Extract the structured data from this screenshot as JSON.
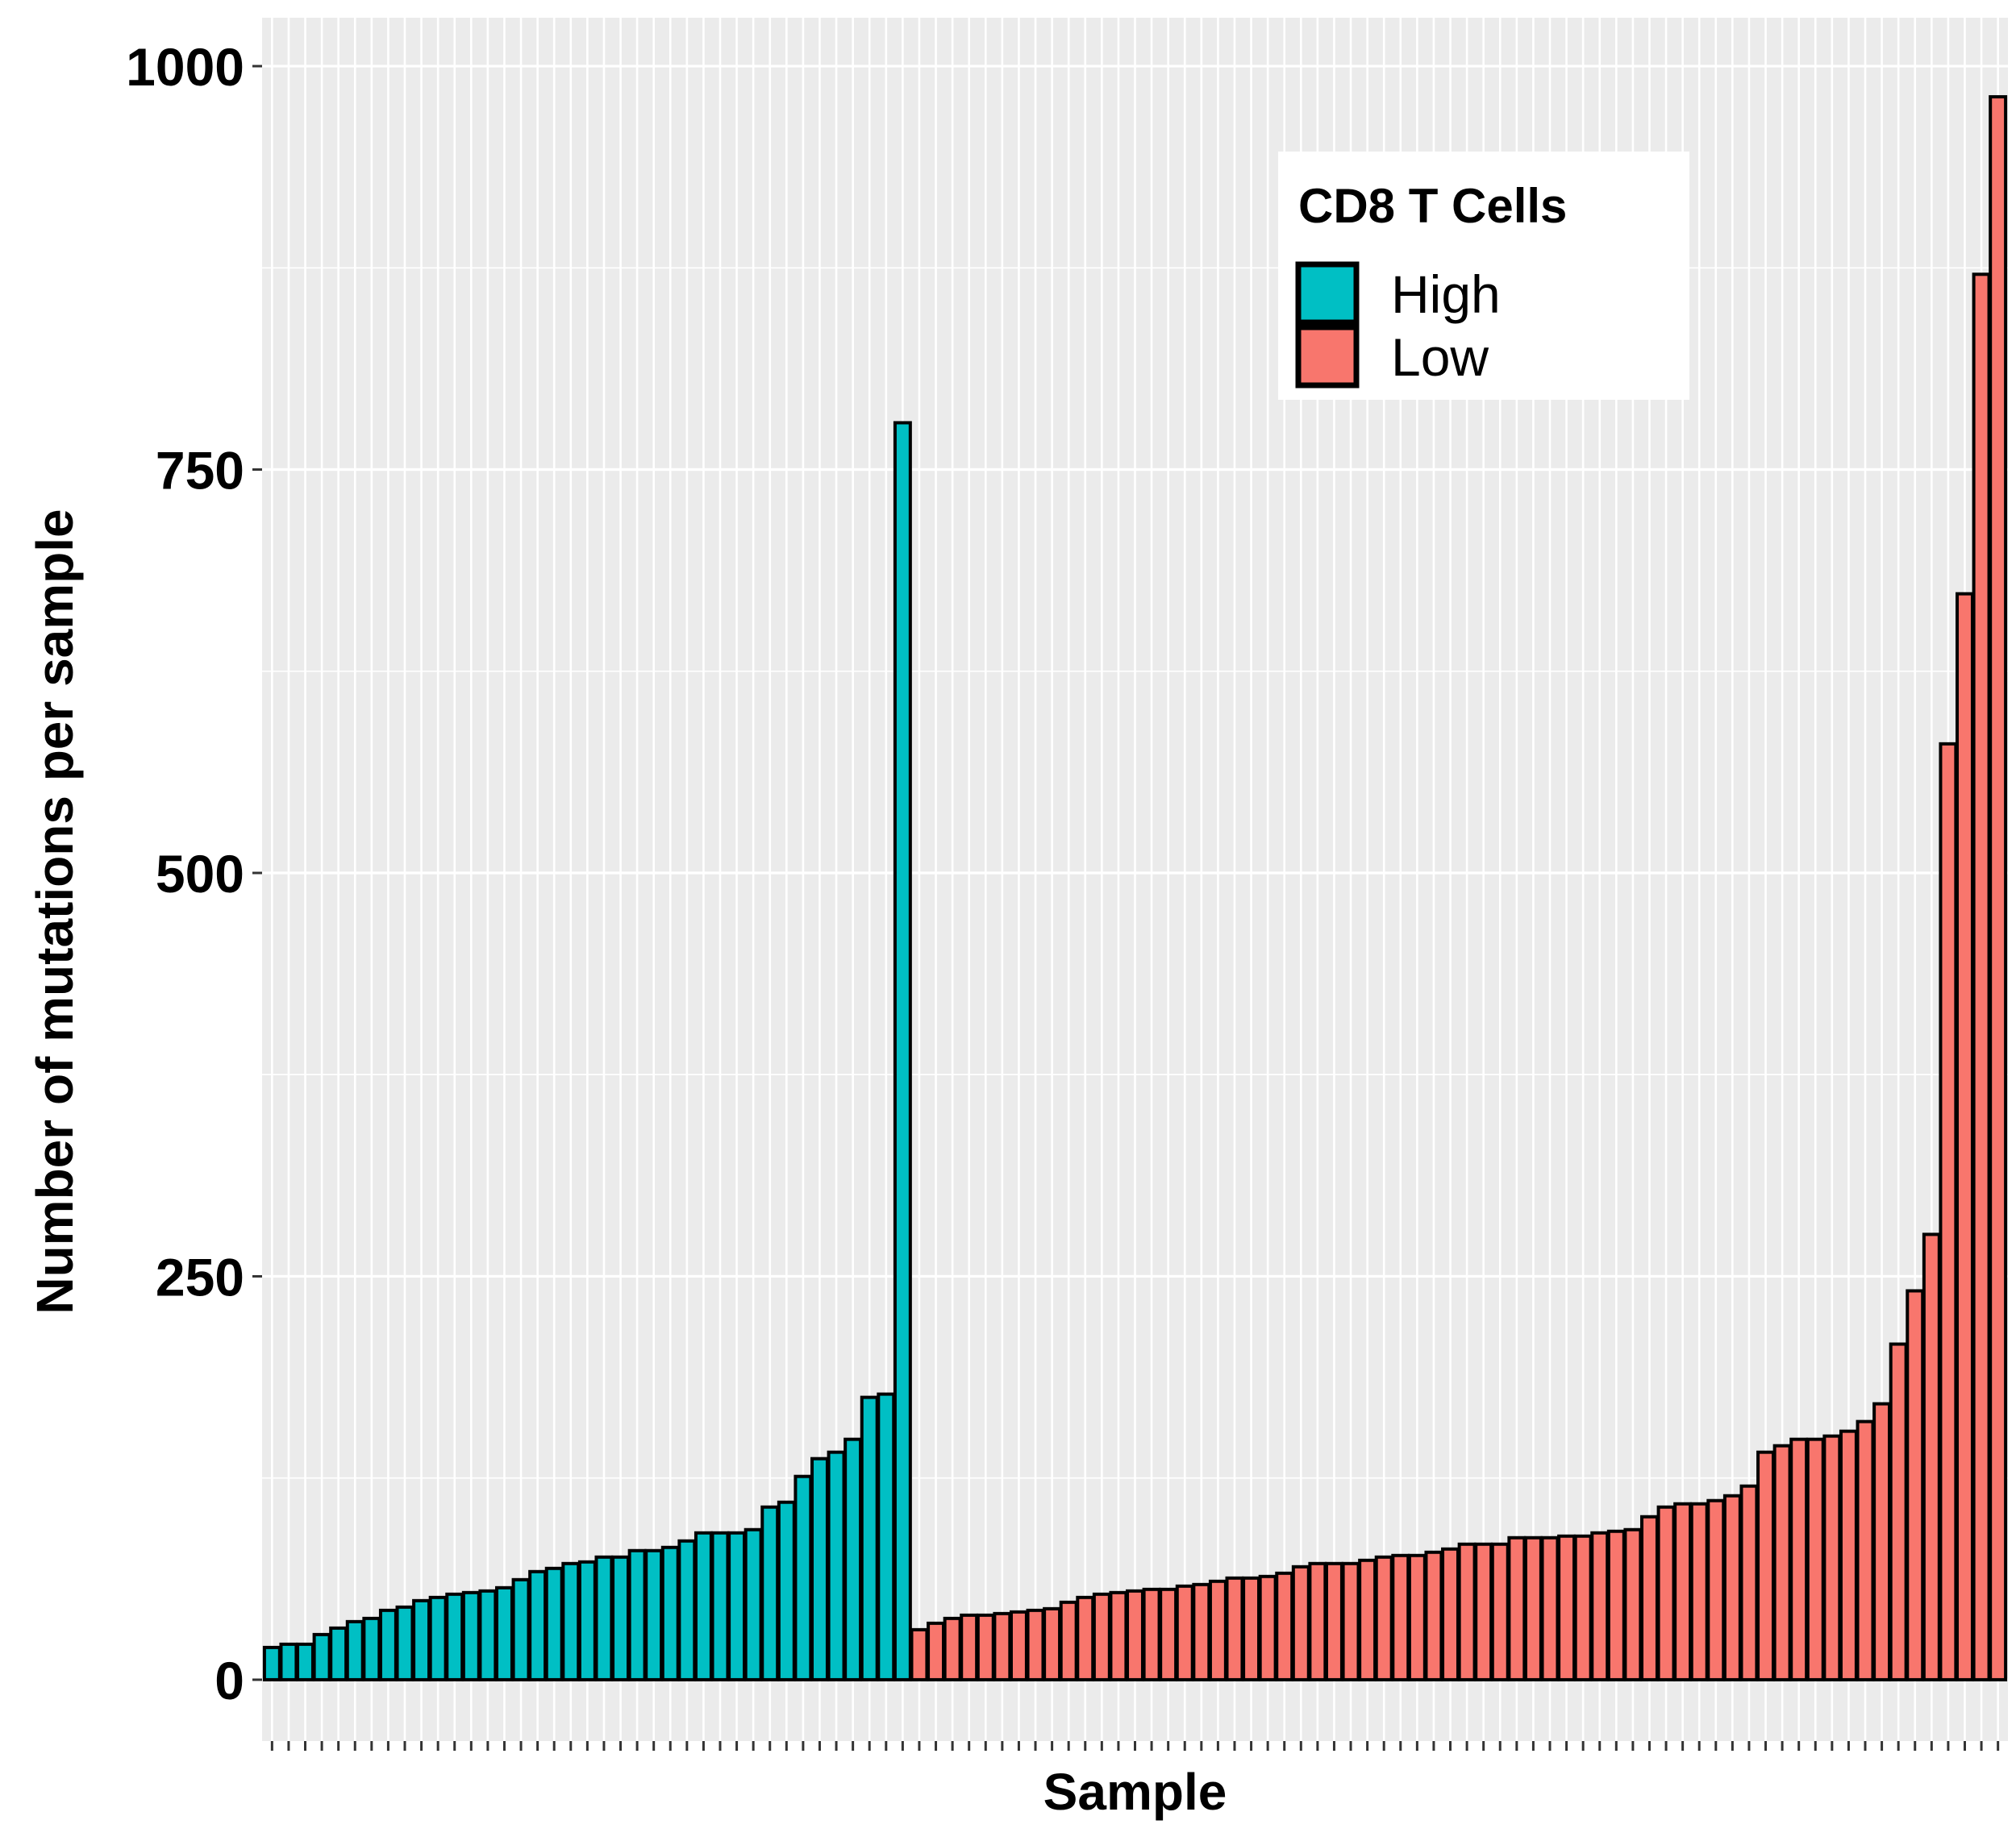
{
  "chart_data": {
    "type": "bar",
    "title": "",
    "xlabel": "Sample",
    "ylabel": "Number of mutations per sample",
    "ylim": [
      -38,
      1030
    ],
    "yticks": [
      0,
      250,
      500,
      750,
      1000
    ],
    "yticklabels": [
      "0",
      "250",
      "500",
      "750",
      "1000"
    ],
    "x_tick_labels_shown": false,
    "grid": true,
    "legend": {
      "title": "CD8 T Cells",
      "position": "top-right",
      "entries": [
        {
          "label": "High",
          "color": "#00BFC4"
        },
        {
          "label": "Low",
          "color": "#F8766D"
        }
      ]
    },
    "series": [
      {
        "name": "High",
        "color": "#00BFC4",
        "values": [
          20,
          22,
          22,
          28,
          32,
          36,
          38,
          43,
          45,
          49,
          51,
          53,
          54,
          55,
          57,
          62,
          67,
          69,
          72,
          73,
          76,
          76,
          80,
          80,
          82,
          86,
          91,
          91,
          91,
          93,
          107,
          110,
          126,
          137,
          141,
          149,
          175,
          177,
          779
        ]
      },
      {
        "name": "Low",
        "color": "#F8766D",
        "values": [
          31,
          35,
          38,
          40,
          40,
          41,
          42,
          43,
          44,
          48,
          51,
          53,
          54,
          55,
          56,
          56,
          58,
          59,
          61,
          63,
          63,
          64,
          66,
          70,
          72,
          72,
          72,
          74,
          76,
          77,
          77,
          79,
          81,
          84,
          84,
          84,
          88,
          88,
          88,
          89,
          89,
          91,
          92,
          93,
          101,
          107,
          109,
          109,
          111,
          114,
          120,
          141,
          145,
          149,
          149,
          151,
          154,
          160,
          171,
          208,
          241,
          276,
          580,
          673,
          871,
          981
        ]
      }
    ]
  }
}
